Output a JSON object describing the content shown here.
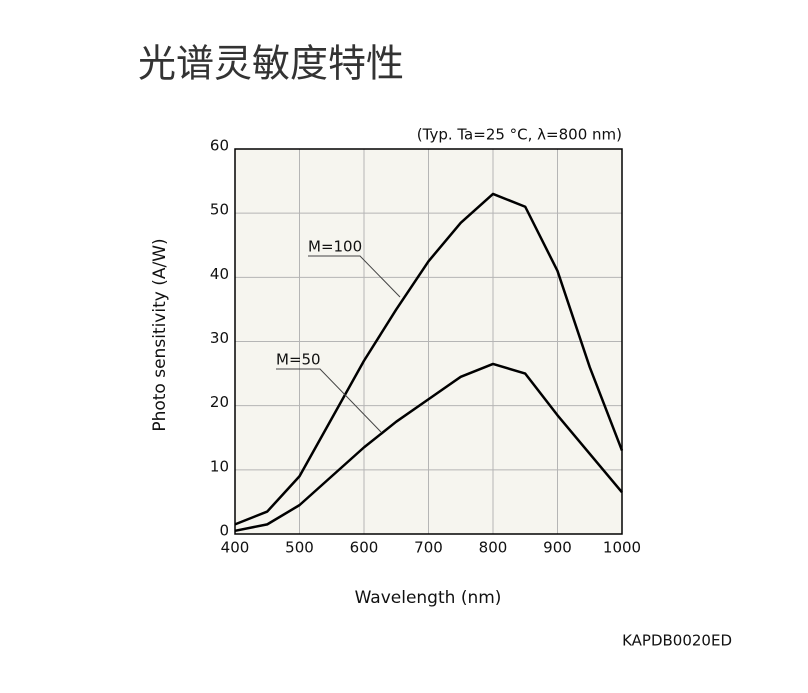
{
  "title": "光谱灵敏度特性",
  "chart_data": {
    "type": "line",
    "subtitle": "(Typ. Ta=25 °C, λ=800 nm)",
    "x_label": "Wavelength (nm)",
    "y_label": "Photo sensitivity (A/W)",
    "x": [
      400,
      450,
      500,
      550,
      600,
      650,
      700,
      750,
      800,
      850,
      900,
      950,
      1000
    ],
    "series": [
      {
        "name": "M=100",
        "color": "#000000",
        "values": [
          1.5,
          3.5,
          9,
          18,
          27,
          35,
          42.5,
          48.5,
          53,
          51,
          41,
          26,
          13
        ]
      },
      {
        "name": "M=50",
        "color": "#000000",
        "values": [
          0.5,
          1.5,
          4.5,
          9,
          13.5,
          17.5,
          21,
          24.5,
          26.5,
          25,
          18.5,
          12.5,
          6.5
        ]
      }
    ],
    "xlim": [
      400,
      1000
    ],
    "ylim": [
      0,
      60
    ],
    "xticks": [
      400,
      500,
      600,
      700,
      800,
      900,
      1000
    ],
    "yticks": [
      0,
      10,
      20,
      30,
      40,
      50,
      60
    ],
    "grid": true,
    "plot_background": "#f6f5ef"
  },
  "code": "KAPDB0020ED"
}
